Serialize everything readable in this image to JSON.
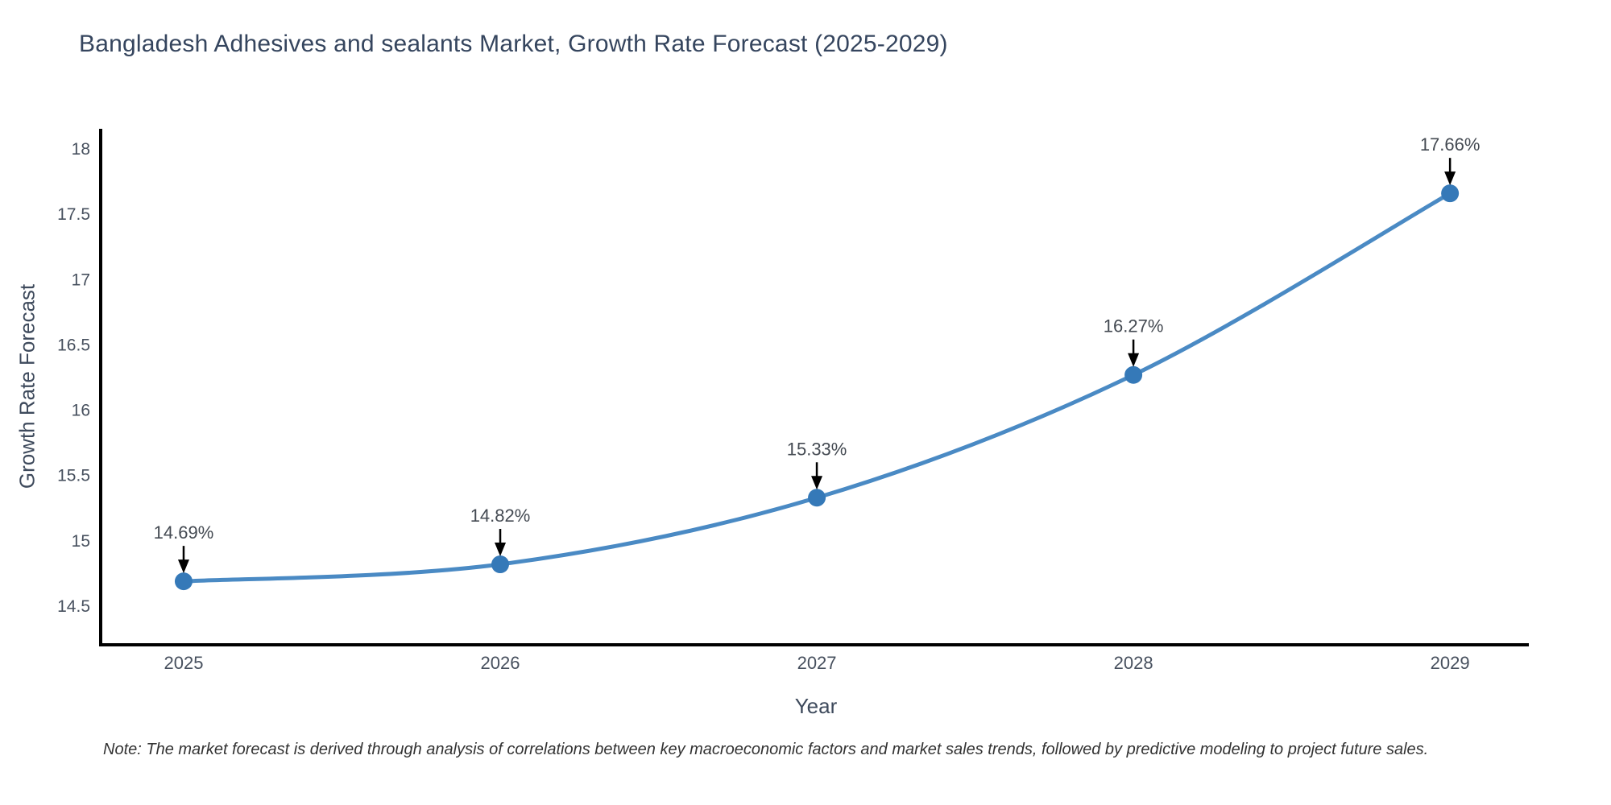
{
  "title": "Bangladesh Adhesives and sealants Market, Growth Rate Forecast (2025-2029)",
  "note": "Note: The market forecast is derived through analysis of correlations between key macroeconomic factors and market sales trends, followed by predictive modeling to project future sales.",
  "chart_data": {
    "type": "line",
    "title": "Bangladesh Adhesives and sealants Market, Growth Rate Forecast (2025-2029)",
    "xlabel": "Year",
    "ylabel": "Growth Rate Forecast",
    "x": [
      2025,
      2026,
      2027,
      2028,
      2029
    ],
    "values": [
      14.69,
      14.82,
      15.33,
      16.27,
      17.66
    ],
    "point_labels": [
      "14.69%",
      "14.82%",
      "15.33%",
      "16.27%",
      "17.66%"
    ],
    "yticks": [
      14.5,
      15,
      15.5,
      16,
      16.5,
      17,
      17.5,
      18
    ],
    "ylim": [
      14.204,
      18.154
    ],
    "xlim": [
      2024.738,
      2029.249
    ],
    "grid": false,
    "legend": null,
    "line_color": "#4a8ac4",
    "marker_color": "#3579b8",
    "axis_color": "#000000",
    "tick_color": "#47505e",
    "annotation_color": "#444a52"
  }
}
